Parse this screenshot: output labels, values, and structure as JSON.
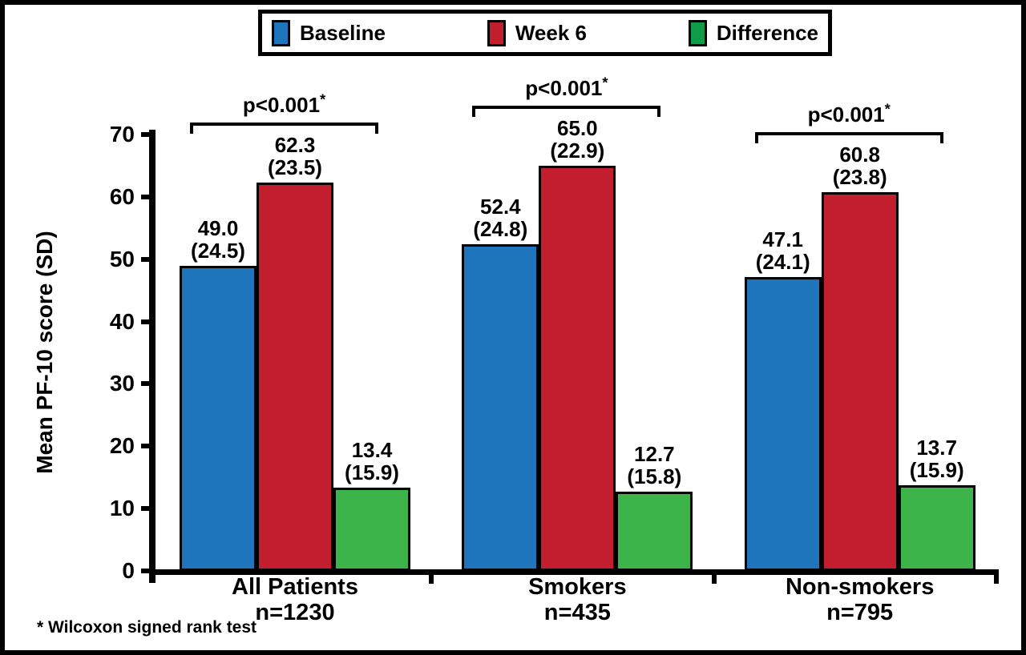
{
  "figure": {
    "footnote": "* Wilcoxon signed rank test",
    "background": "#FFFFFF",
    "frame_color": "#000000"
  },
  "legend": {
    "items": [
      {
        "label": "Baseline",
        "swatch_color": "#1F75BC"
      },
      {
        "label": "Week 6",
        "swatch_color": "#C21E2D"
      },
      {
        "label": "Difference",
        "swatch_color": "#0F9B48"
      }
    ]
  },
  "chart_data": {
    "type": "bar",
    "title": "",
    "xlabel": "",
    "ylabel": "Mean PF-10 score (SD)",
    "ylim": [
      0,
      70
    ],
    "yticks": [
      0,
      10,
      20,
      30,
      40,
      50,
      60,
      70
    ],
    "grid": false,
    "legend_position": "top",
    "series": [
      {
        "name": "Baseline",
        "color": "#1F75BC"
      },
      {
        "name": "Week 6",
        "color": "#C21E2D"
      },
      {
        "name": "Difference",
        "color": "#3CB44A"
      }
    ],
    "groups": [
      {
        "category": "All Patients",
        "n_label": "n=1230",
        "p_label": "p<0.001",
        "p_superscript": "*",
        "bars": [
          {
            "series": "Baseline",
            "value": 49.0,
            "sd": 24.5,
            "value_text": "49.0",
            "sd_text": "(24.5)"
          },
          {
            "series": "Week 6",
            "value": 62.3,
            "sd": 23.5,
            "value_text": "62.3",
            "sd_text": "(23.5)"
          },
          {
            "series": "Difference",
            "value": 13.4,
            "sd": 15.9,
            "value_text": "13.4",
            "sd_text": "(15.9)"
          }
        ]
      },
      {
        "category": "Smokers",
        "n_label": "n=435",
        "p_label": "p<0.001",
        "p_superscript": "*",
        "bars": [
          {
            "series": "Baseline",
            "value": 52.4,
            "sd": 24.8,
            "value_text": "52.4",
            "sd_text": "(24.8)"
          },
          {
            "series": "Week 6",
            "value": 65.0,
            "sd": 22.9,
            "value_text": "65.0",
            "sd_text": "(22.9)"
          },
          {
            "series": "Difference",
            "value": 12.7,
            "sd": 15.8,
            "value_text": "12.7",
            "sd_text": "(15.8)"
          }
        ]
      },
      {
        "category": "Non-smokers",
        "n_label": "n=795",
        "p_label": "p<0.001",
        "p_superscript": "*",
        "bars": [
          {
            "series": "Baseline",
            "value": 47.1,
            "sd": 24.1,
            "value_text": "47.1",
            "sd_text": "(24.1)"
          },
          {
            "series": "Week 6",
            "value": 60.8,
            "sd": 23.8,
            "value_text": "60.8",
            "sd_text": "(23.8)"
          },
          {
            "series": "Difference",
            "value": 13.7,
            "sd": 15.9,
            "value_text": "13.7",
            "sd_text": "(15.9)"
          }
        ]
      }
    ]
  }
}
